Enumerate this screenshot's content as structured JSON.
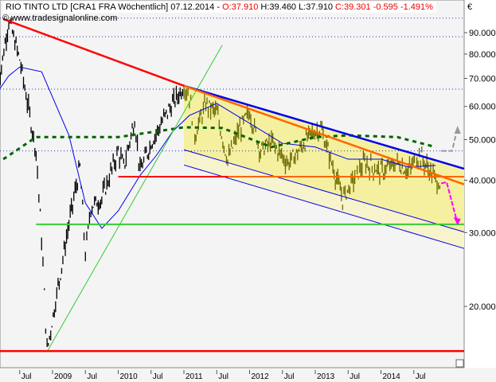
{
  "header": {
    "symbol": "RIO TINTO LTD [CRA1 FRA  Wöchentlich]",
    "date": "07.12.2014 -",
    "open": "O:37.910",
    "high": "H:39.460",
    "low": "L:37.910",
    "close_change": "C:39.301 -0.595 -1.491%",
    "copyright": "© www.tradesignalonline.com",
    "currency": "€"
  },
  "colors": {
    "up_bar": "#000000",
    "channel_bar": "#6b6b00",
    "ma": "#0000ee",
    "ma_long": "#006400",
    "downtrend": "#ff0000",
    "uptrend": "#33cc33",
    "channel": "#0000ee",
    "mid": "#ff6600",
    "support": "#ff0000",
    "green_level": "#33cc33",
    "channel_fill": "#f5f0a0",
    "forecast_down": "#ff00ff",
    "forecast_up": "#999999"
  },
  "chart_data": {
    "type": "candlestick",
    "scale": "log",
    "ylim": [
      14.5,
      100
    ],
    "xlim": [
      "2008-02",
      "2015-04"
    ],
    "y_ticks": [
      "90.000",
      "80.000",
      "70.000",
      "60.000",
      "50.000",
      "40.000",
      "30.000",
      "20.000"
    ],
    "y_tick_values": [
      90,
      80,
      70,
      60,
      50,
      40,
      30,
      20
    ],
    "x_ticks": [
      {
        "label": "Jul",
        "date": "2008-07"
      },
      {
        "label": "2009",
        "date": "2009-01"
      },
      {
        "label": "Jul",
        "date": "2009-07"
      },
      {
        "label": "2010",
        "date": "2010-01"
      },
      {
        "label": "Jul",
        "date": "2010-07"
      },
      {
        "label": "2011",
        "date": "2011-01"
      },
      {
        "label": "Jul",
        "date": "2011-07"
      },
      {
        "label": "2012",
        "date": "2012-01"
      },
      {
        "label": "Jul",
        "date": "2012-07"
      },
      {
        "label": "2013",
        "date": "2013-01"
      },
      {
        "label": "Jul",
        "date": "2013-07"
      },
      {
        "label": "2014",
        "date": "2014-01"
      },
      {
        "label": "Jul",
        "date": "2014-07"
      }
    ],
    "price": [
      [
        "2008-03",
        66
      ],
      [
        "2008-05",
        96.5
      ],
      [
        "2008-07",
        77.6
      ],
      [
        "2008-10",
        47
      ],
      [
        "2008-11",
        29
      ],
      [
        "2008-12",
        15.7
      ],
      [
        "2009-02",
        22.3
      ],
      [
        "2009-04",
        31.6
      ],
      [
        "2009-06",
        43
      ],
      [
        "2009-07",
        26.6
      ],
      [
        "2009-08",
        34.6
      ],
      [
        "2009-10",
        36.2
      ],
      [
        "2010-01",
        47
      ],
      [
        "2010-02",
        43
      ],
      [
        "2010-04",
        55.9
      ],
      [
        "2010-05",
        42
      ],
      [
        "2010-07",
        49.2
      ],
      [
        "2010-10",
        58.3
      ],
      [
        "2011-01",
        67.2
      ],
      [
        "2011-02",
        63.5
      ],
      [
        "2011-03",
        51.3
      ],
      [
        "2011-05",
        60.9
      ],
      [
        "2011-07",
        58
      ],
      [
        "2011-09",
        44.6
      ],
      [
        "2011-11",
        52.4
      ],
      [
        "2012-01",
        58.3
      ],
      [
        "2012-03",
        47.1
      ],
      [
        "2012-05",
        49.3
      ],
      [
        "2012-08",
        44
      ],
      [
        "2012-10",
        47
      ],
      [
        "2012-12",
        51.3
      ],
      [
        "2013-02",
        53.4
      ],
      [
        "2013-04",
        44
      ],
      [
        "2013-06",
        36.2
      ],
      [
        "2013-08",
        40.2
      ],
      [
        "2013-10",
        44
      ],
      [
        "2014-01",
        42
      ],
      [
        "2014-04",
        44
      ],
      [
        "2014-06",
        42
      ],
      [
        "2014-08",
        46
      ],
      [
        "2014-11",
        40.2
      ],
      [
        "2014-12",
        39.3
      ]
    ],
    "ma_short": [
      [
        "2008-03",
        65.1
      ],
      [
        "2008-05",
        71
      ],
      [
        "2008-07",
        74.5
      ],
      [
        "2008-11",
        72.6
      ],
      [
        "2009-04",
        51.2
      ],
      [
        "2009-07",
        35.3
      ],
      [
        "2009-10",
        30.7
      ],
      [
        "2010-01",
        33.8
      ],
      [
        "2010-05",
        41.1
      ],
      [
        "2010-08",
        45.9
      ],
      [
        "2010-11",
        52.4
      ],
      [
        "2011-02",
        57.1
      ],
      [
        "2011-07",
        61
      ],
      [
        "2012-01",
        54.7
      ],
      [
        "2012-07",
        49
      ],
      [
        "2013-01",
        48
      ],
      [
        "2013-07",
        44.9
      ],
      [
        "2014-01",
        44.9
      ],
      [
        "2014-06",
        43
      ],
      [
        "2014-11",
        43.4
      ]
    ],
    "ma_long": [
      [
        "2008-04",
        44.9
      ],
      [
        "2008-10",
        50.7
      ],
      [
        "2010-01",
        50.7
      ],
      [
        "2011-01",
        53.5
      ],
      [
        "2011-08",
        53.3
      ],
      [
        "2012-05",
        48
      ],
      [
        "2013-01",
        50.7
      ],
      [
        "2013-07",
        51.2
      ],
      [
        "2014-04",
        50.7
      ],
      [
        "2014-11",
        48
      ]
    ],
    "trendlines": [
      {
        "id": "downtrend",
        "color": "#ff0000",
        "width": 2.5,
        "from": [
          "2008-04",
          97
        ],
        "to": [
          "2011-01",
          67.2
        ]
      },
      {
        "id": "uptrend",
        "color": "#33cc33",
        "width": 1,
        "from": [
          "2008-12",
          15.6
        ],
        "to": [
          "2011-08",
          84
        ]
      },
      {
        "id": "channel-top",
        "color": "#0000ee",
        "width": 2.5,
        "from": [
          "2011-01",
          67.2
        ],
        "to": [
          "2015-04",
          42.6
        ]
      },
      {
        "id": "channel-mid",
        "color": "#ff6600",
        "width": 2.5,
        "from": [
          "2011-01",
          67.2
        ],
        "to": [
          "2015-04",
          39.1
        ]
      },
      {
        "id": "channel-low-1",
        "color": "#0000ee",
        "width": 1,
        "from": [
          "2011-01",
          47.3
        ],
        "to": [
          "2015-04",
          30.1
        ]
      },
      {
        "id": "channel-low-2",
        "color": "#0000ee",
        "width": 1,
        "from": [
          "2011-01",
          43.5
        ],
        "to": [
          "2015-04",
          27.5
        ]
      },
      {
        "id": "support-red",
        "color": "#ff0000",
        "width": 2,
        "from": [
          "2010-01",
          40.8
        ],
        "to": [
          "2011-09",
          40.8
        ]
      },
      {
        "id": "support-orange",
        "color": "#ff6600",
        "width": 2,
        "from": [
          "2011-09",
          40.8
        ],
        "to": [
          "2015-04",
          40.8
        ]
      },
      {
        "id": "green-level",
        "color": "#33cc33",
        "width": 2,
        "from": [
          "2008-10",
          31.4
        ],
        "to": [
          "2015-04",
          31.4
        ]
      },
      {
        "id": "bottom-level",
        "color": "#ff0000",
        "width": 2.5,
        "from": [
          "2008-02",
          15.65
        ],
        "to": [
          "2015-04",
          15.65
        ]
      }
    ],
    "dotted_levels": [
      97.5,
      88,
      66,
      47
    ],
    "forecast_down": [
      [
        "2014-12",
        39.3
      ],
      [
        "2015-01",
        39.6
      ],
      [
        "2015-03",
        31.5
      ]
    ],
    "forecast_up": [
      [
        "2014-12",
        47
      ],
      [
        "2015-02",
        47
      ],
      [
        "2015-03",
        53.5
      ]
    ]
  }
}
